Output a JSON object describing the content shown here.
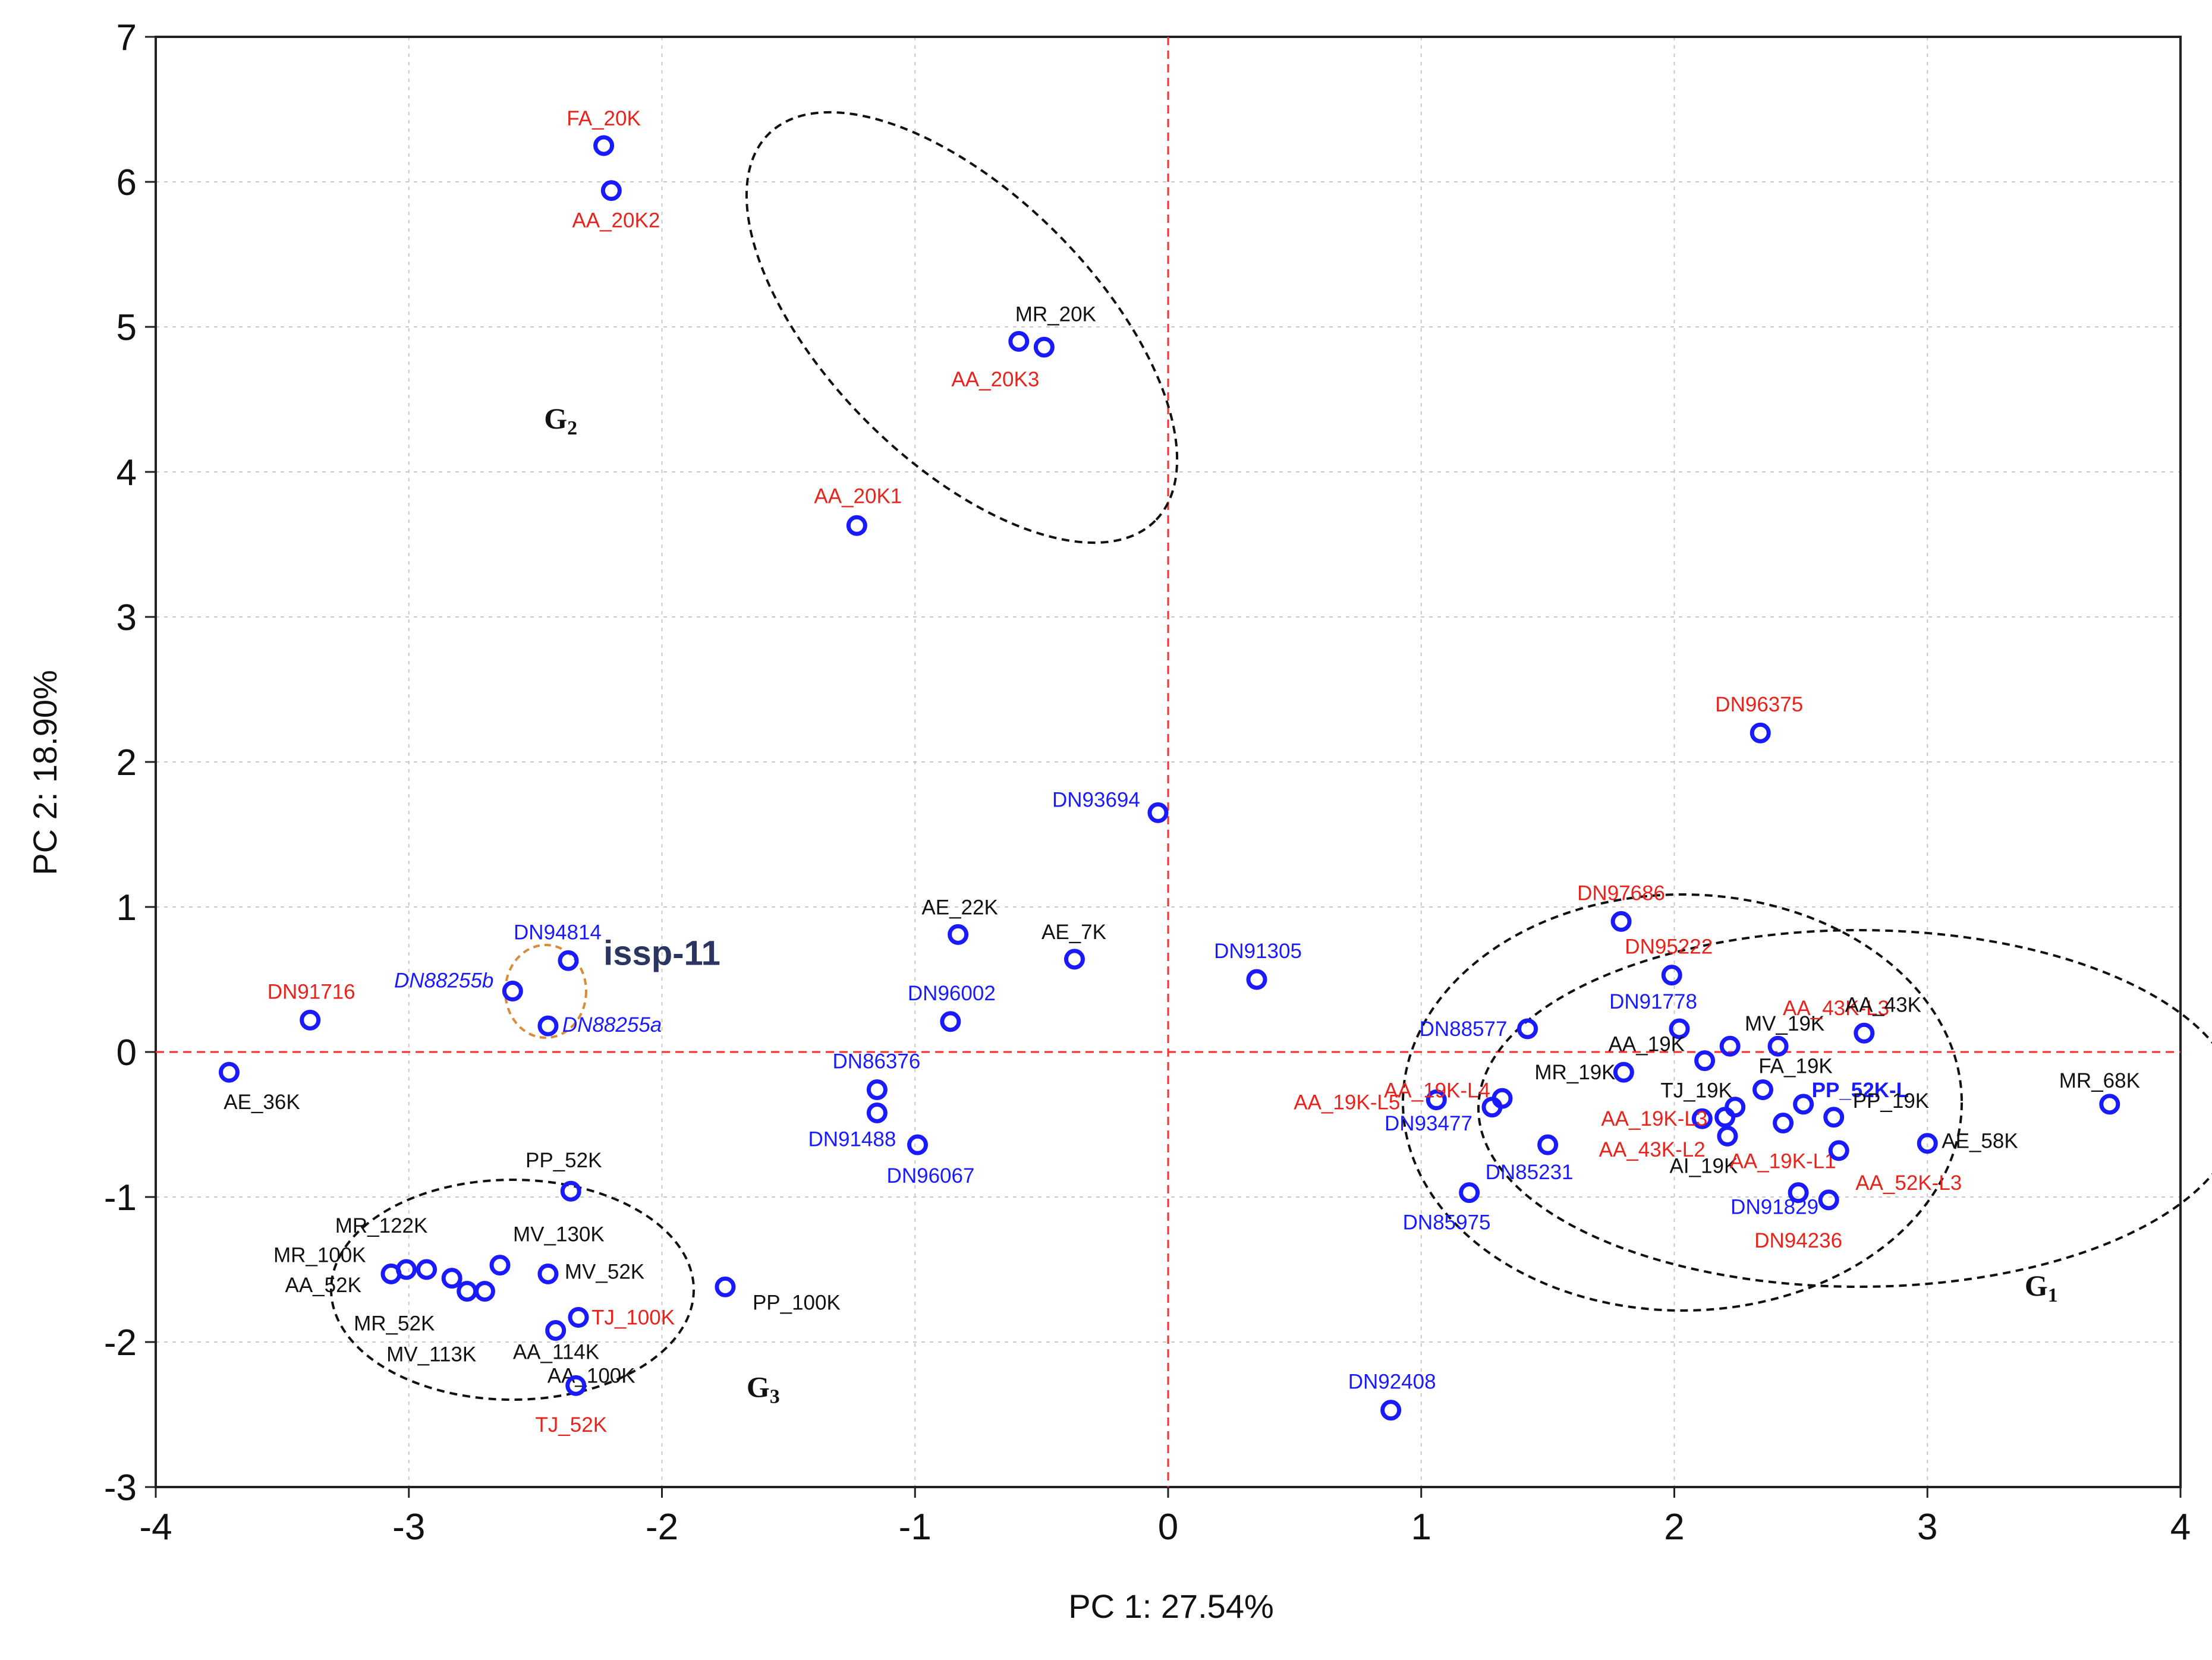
{
  "chart_data": {
    "type": "scatter",
    "title": "",
    "xlabel": "PC 1: 27.54%",
    "ylabel": "PC 2: 18.90%",
    "xlim": [
      -4,
      4
    ],
    "ylim": [
      -3,
      7
    ],
    "xticks": [
      -4,
      -3,
      -2,
      -1,
      0,
      1,
      2,
      3,
      4
    ],
    "yticks": [
      -3,
      -2,
      -1,
      0,
      1,
      2,
      3,
      4,
      5,
      6,
      7
    ],
    "grid": true,
    "colors": {
      "marker": "#1a1aff",
      "blue_label": "#1a1aff",
      "red_label": "#e8231c",
      "black_label": "#111111",
      "ref_line": "#ff2a2a",
      "ellipse": "#111111",
      "issp_ellipse": "#d98a3a"
    },
    "points": [
      {
        "x": -2.23,
        "y": 6.25,
        "label": "FA_20K",
        "color": "red"
      },
      {
        "x": -2.2,
        "y": 5.94,
        "label": "AA_20K2",
        "color": "red"
      },
      {
        "x": -0.59,
        "y": 4.9,
        "label": "MR_20K",
        "color": "black"
      },
      {
        "x": -0.49,
        "y": 4.86,
        "label": "AA_20K3",
        "color": "red"
      },
      {
        "x": -1.23,
        "y": 3.63,
        "label": "AA_20K1",
        "color": "red"
      },
      {
        "x": 2.34,
        "y": 2.2,
        "label": "DN96375",
        "color": "red"
      },
      {
        "x": -0.04,
        "y": 1.65,
        "label": "DN93694",
        "color": "blue"
      },
      {
        "x": 1.79,
        "y": 0.9,
        "label": "DN97686",
        "color": "red"
      },
      {
        "x": 1.99,
        "y": 0.53,
        "label": "DN95222",
        "color": "red"
      },
      {
        "x": 0.35,
        "y": 0.5,
        "label": "DN91305",
        "color": "blue"
      },
      {
        "x": -0.83,
        "y": 0.81,
        "label": "AE_22K",
        "color": "black"
      },
      {
        "x": -0.37,
        "y": 0.64,
        "label": "AE_7K",
        "color": "black"
      },
      {
        "x": -0.86,
        "y": 0.21,
        "label": "DN96002",
        "color": "blue"
      },
      {
        "x": -2.37,
        "y": 0.63,
        "label": "DN94814",
        "color": "blue"
      },
      {
        "x": -2.59,
        "y": 0.42,
        "label": "DN88255b",
        "color": "blue",
        "italic": true
      },
      {
        "x": -2.45,
        "y": 0.18,
        "label": "DN88255a",
        "color": "blue",
        "italic": true
      },
      {
        "x": -3.39,
        "y": 0.22,
        "label": "DN91716",
        "color": "red"
      },
      {
        "x": -3.71,
        "y": -0.14,
        "label": "AE_36K",
        "color": "black"
      },
      {
        "x": -1.15,
        "y": -0.26,
        "label": "DN86376",
        "color": "blue"
      },
      {
        "x": -1.15,
        "y": -0.42,
        "label": "DN91488",
        "color": "blue"
      },
      {
        "x": -0.99,
        "y": -0.64,
        "label": "DN96067",
        "color": "blue"
      },
      {
        "x": 1.42,
        "y": 0.16,
        "label": "DN88577",
        "color": "blue"
      },
      {
        "x": 2.02,
        "y": 0.16,
        "label": "DN91778",
        "color": "blue"
      },
      {
        "x": 2.22,
        "y": 0.04,
        "label": "MV_19K",
        "color": "black"
      },
      {
        "x": 2.41,
        "y": 0.04,
        "label": "AA_43K-L3",
        "color": "red"
      },
      {
        "x": 2.75,
        "y": 0.13,
        "label": "AA_43K",
        "color": "black"
      },
      {
        "x": 1.8,
        "y": -0.14,
        "label": "MR_19K",
        "color": "black"
      },
      {
        "x": 2.12,
        "y": -0.06,
        "label": "AA_19K",
        "color": "black"
      },
      {
        "x": 1.06,
        "y": -0.33,
        "label": "AA_19K-L5",
        "color": "red"
      },
      {
        "x": 1.28,
        "y": -0.38,
        "label": "AA_19K-L4",
        "color": "red"
      },
      {
        "x": 1.32,
        "y": -0.32,
        "label": "DN93477",
        "color": "blue"
      },
      {
        "x": 2.11,
        "y": -0.46,
        "label": "AA_19K-L3",
        "color": "red"
      },
      {
        "x": 2.2,
        "y": -0.45,
        "label": "AA_43K-L2",
        "color": "red"
      },
      {
        "x": 2.24,
        "y": -0.38,
        "label": "TJ_19K",
        "color": "black"
      },
      {
        "x": 2.21,
        "y": -0.58,
        "label": "AI_19K",
        "color": "black"
      },
      {
        "x": 2.35,
        "y": -0.26,
        "label": "FA_19K",
        "color": "black"
      },
      {
        "x": 2.43,
        "y": -0.49,
        "label": "AA_19K-L1",
        "color": "red"
      },
      {
        "x": 2.51,
        "y": -0.36,
        "label": "PP_52K-L",
        "color": "blue",
        "bold": true
      },
      {
        "x": 2.63,
        "y": -0.45,
        "label": "PP_19K",
        "color": "black"
      },
      {
        "x": 2.65,
        "y": -0.68,
        "label": "AA_52K-L3",
        "color": "red"
      },
      {
        "x": 1.5,
        "y": -0.64,
        "label": "DN85231",
        "color": "blue"
      },
      {
        "x": 1.19,
        "y": -0.97,
        "label": "DN85975",
        "color": "blue"
      },
      {
        "x": 2.49,
        "y": -0.97,
        "label": "DN91829",
        "color": "blue"
      },
      {
        "x": 2.61,
        "y": -1.02,
        "label": "DN94236",
        "color": "red"
      },
      {
        "x": 3.0,
        "y": -0.63,
        "label": "AE_58K",
        "color": "black"
      },
      {
        "x": 3.72,
        "y": -0.36,
        "label": "MR_68K",
        "color": "black"
      },
      {
        "x": 0.88,
        "y": -2.47,
        "label": "DN92408",
        "color": "blue"
      },
      {
        "x": -2.36,
        "y": -0.96,
        "label": "PP_52K",
        "color": "black"
      },
      {
        "x": -3.07,
        "y": -1.53,
        "label": "MR_100K",
        "color": "black"
      },
      {
        "x": -3.01,
        "y": -1.5,
        "label": "AA_52K",
        "color": "black"
      },
      {
        "x": -2.93,
        "y": -1.5,
        "label": "MR_122K",
        "color": "black"
      },
      {
        "x": -2.83,
        "y": -1.56,
        "label": "MR_52K",
        "color": "black"
      },
      {
        "x": -2.77,
        "y": -1.65,
        "label": "MV_113K",
        "color": "black"
      },
      {
        "x": -2.7,
        "y": -1.65,
        "label": "AA_114K",
        "color": "black"
      },
      {
        "x": -2.64,
        "y": -1.47,
        "label": "MV_130K",
        "color": "black"
      },
      {
        "x": -2.45,
        "y": -1.53,
        "label": "MV_52K",
        "color": "black"
      },
      {
        "x": -2.42,
        "y": -1.92,
        "label": "AA_100K",
        "color": "black"
      },
      {
        "x": -2.33,
        "y": -1.83,
        "label": "TJ_100K",
        "color": "red"
      },
      {
        "x": -2.34,
        "y": -2.3,
        "label": "TJ_52K",
        "color": "red"
      },
      {
        "x": -1.75,
        "y": -1.62,
        "label": "PP_100K",
        "color": "black"
      }
    ],
    "annotations": [
      {
        "text": "G",
        "sub": "2",
        "x": -2.4,
        "y": 4.3
      },
      {
        "text": "G",
        "sub": "3",
        "x": -1.6,
        "y": -2.38
      },
      {
        "text": "G",
        "sub": "1",
        "x": 3.45,
        "y": -1.68
      },
      {
        "text": "issp-11",
        "x": -2.0,
        "y": 0.6
      }
    ]
  }
}
